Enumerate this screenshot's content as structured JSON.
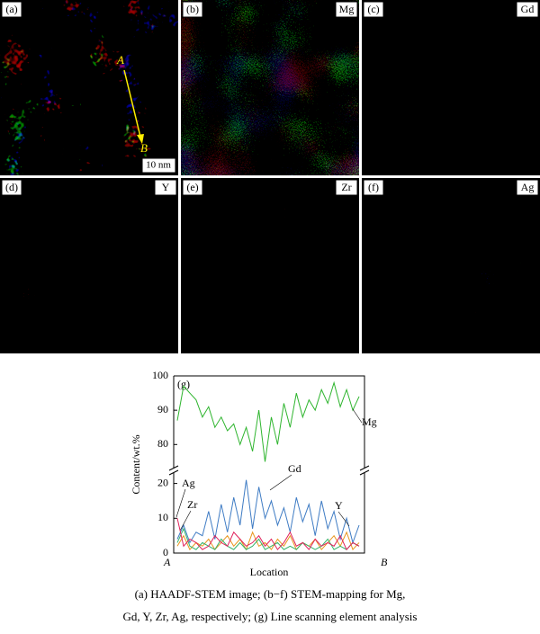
{
  "panels": [
    {
      "label": "(a)",
      "color": [
        1.0,
        1.0,
        1.0
      ]
    },
    {
      "label": "(b)",
      "element": "Mg",
      "color": [
        0.25,
        1.0,
        0.2
      ]
    },
    {
      "label": "(c)",
      "element": "Gd",
      "color": [
        0.15,
        0.55,
        1.0
      ]
    },
    {
      "label": "(d)",
      "element": "Y",
      "color": [
        1.0,
        0.6,
        0.1
      ]
    },
    {
      "label": "(e)",
      "element": "Zr",
      "color": [
        0.2,
        0.9,
        0.6
      ]
    },
    {
      "label": "(f)",
      "element": "Ag",
      "color": [
        1.0,
        0.1,
        0.5
      ]
    }
  ],
  "arrow_start": "A",
  "arrow_end": "B",
  "scale_bar": "10 nm",
  "chart_data": {
    "type": "line",
    "title": "(g)",
    "ylabel": "Content/wt.%",
    "xlabel": "Location",
    "x_start": "A",
    "x_end": "B",
    "ylim": [
      0,
      23
    ],
    "yticks": [
      0,
      10,
      20
    ],
    "ylim_upper": [
      73,
      100
    ],
    "yticks_upper": [
      80,
      90,
      100
    ],
    "series": [
      {
        "name": "Mg",
        "color": "#2fb52f",
        "axis": "upper",
        "values": [
          87,
          97,
          95,
          93,
          88,
          91,
          85,
          88,
          84,
          86,
          80,
          85,
          78,
          90,
          75,
          88,
          80,
          92,
          85,
          95,
          88,
          93,
          90,
          96,
          92,
          98,
          91,
          96,
          90,
          94
        ]
      },
      {
        "name": "Gd",
        "color": "#3f7cc4",
        "values": [
          4,
          8,
          3,
          6,
          5,
          12,
          4,
          14,
          6,
          16,
          8,
          21,
          7,
          19,
          10,
          15,
          8,
          13,
          6,
          16,
          9,
          14,
          5,
          15,
          7,
          12,
          4,
          10,
          3,
          8
        ]
      },
      {
        "name": "Y",
        "color": "#e8961e",
        "values": [
          2,
          5,
          1,
          3,
          2,
          4,
          1,
          3,
          5,
          2,
          4,
          1,
          6,
          2,
          3,
          1,
          4,
          2,
          5,
          1,
          3,
          2,
          4,
          1,
          3,
          5,
          2,
          6,
          1,
          3
        ]
      },
      {
        "name": "Zr",
        "color": "#36b36b",
        "values": [
          3,
          7,
          2,
          1,
          3,
          2,
          1,
          4,
          2,
          1,
          3,
          1,
          2,
          4,
          1,
          2,
          3,
          1,
          2,
          1,
          3,
          2,
          1,
          2,
          4,
          1,
          2,
          1,
          3,
          2
        ]
      },
      {
        "name": "Ag",
        "color": "#e0205a",
        "values": [
          10,
          2,
          4,
          3,
          1,
          2,
          5,
          3,
          2,
          6,
          4,
          2,
          3,
          5,
          2,
          4,
          1,
          3,
          6,
          2,
          3,
          1,
          4,
          2,
          3,
          2,
          5,
          1,
          3,
          2
        ]
      }
    ]
  },
  "caption": [
    "(a) HAADF-STEM image; (b−f) STEM-mapping for Mg,",
    "Gd, Y, Zr, Ag, respectively; (g) Line scanning element analysis"
  ]
}
